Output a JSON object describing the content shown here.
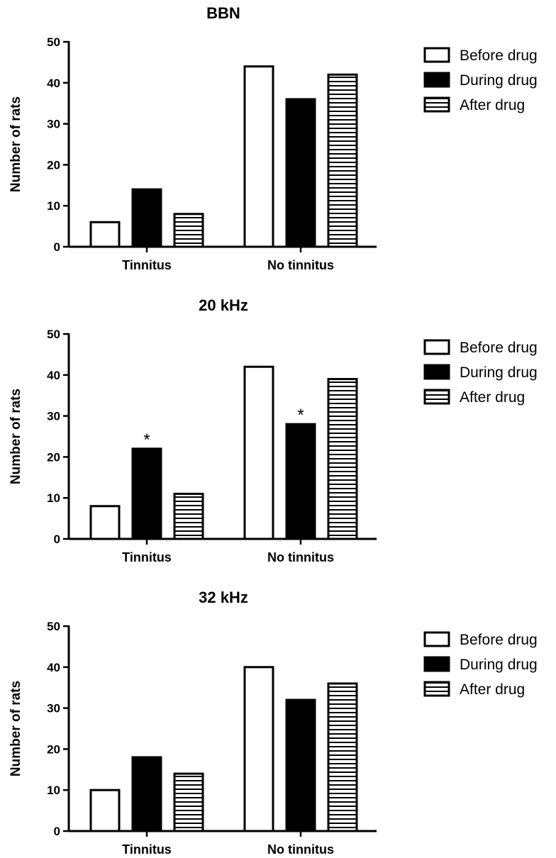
{
  "chart_data": [
    {
      "type": "bar",
      "title": "BBN",
      "ylabel": "Number of rats",
      "xlabel": "",
      "ylim": [
        0,
        50
      ],
      "yticks": [
        "0",
        "10",
        "20",
        "30",
        "40",
        "50"
      ],
      "categories": [
        "Tinnitus",
        "No tinnitus"
      ],
      "series": [
        {
          "name": "Before drug",
          "values": [
            6,
            44
          ]
        },
        {
          "name": "During drug",
          "values": [
            14,
            36
          ]
        },
        {
          "name": "After drug",
          "values": [
            8,
            42
          ]
        }
      ],
      "annotations": [
        "",
        "",
        "",
        "",
        "",
        ""
      ],
      "legend_position": "right"
    },
    {
      "type": "bar",
      "title": "20 kHz",
      "ylabel": "Number of rats",
      "xlabel": "",
      "ylim": [
        0,
        50
      ],
      "yticks": [
        "0",
        "10",
        "20",
        "30",
        "40",
        "50"
      ],
      "categories": [
        "Tinnitus",
        "No tinnitus"
      ],
      "series": [
        {
          "name": "Before drug",
          "values": [
            8,
            42
          ]
        },
        {
          "name": "During drug",
          "values": [
            22,
            28
          ]
        },
        {
          "name": "After drug",
          "values": [
            11,
            39
          ]
        }
      ],
      "annotations": [
        "",
        "*",
        "",
        "",
        "*",
        ""
      ],
      "legend_position": "right"
    },
    {
      "type": "bar",
      "title": "32 kHz",
      "ylabel": "Number of rats",
      "xlabel": "",
      "ylim": [
        0,
        50
      ],
      "yticks": [
        "0",
        "10",
        "20",
        "30",
        "40",
        "50"
      ],
      "categories": [
        "Tinnitus",
        "No tinnitus"
      ],
      "series": [
        {
          "name": "Before drug",
          "values": [
            10,
            40
          ]
        },
        {
          "name": "During drug",
          "values": [
            18,
            32
          ]
        },
        {
          "name": "After drug",
          "values": [
            14,
            36
          ]
        }
      ],
      "annotations": [
        "",
        "",
        "",
        "",
        "",
        ""
      ],
      "legend_position": "right"
    }
  ]
}
